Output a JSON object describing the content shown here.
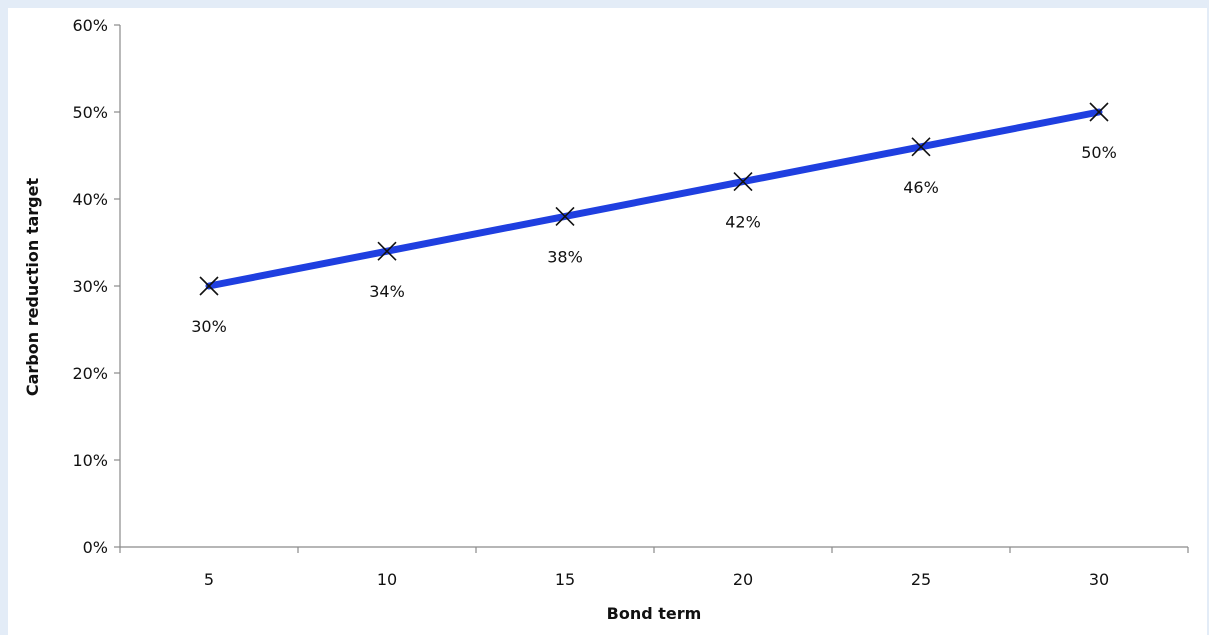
{
  "chart_data": {
    "type": "line",
    "title": "",
    "xlabel": "Bond term",
    "ylabel": "Carbon reduction target",
    "categories": [
      "5",
      "10",
      "15",
      "20",
      "25",
      "30"
    ],
    "series": [
      {
        "values": [
          30,
          34,
          38,
          42,
          46,
          50
        ]
      }
    ],
    "data_labels": [
      "30%",
      "34%",
      "38%",
      "42%",
      "46%",
      "50%"
    ],
    "ylim": [
      0,
      60
    ],
    "y_ticks": [
      "0%",
      "10%",
      "20%",
      "30%",
      "40%",
      "50%",
      "60%"
    ],
    "grid": false,
    "legend": "none",
    "line_color": "#1f3fe0",
    "marker": "x"
  }
}
